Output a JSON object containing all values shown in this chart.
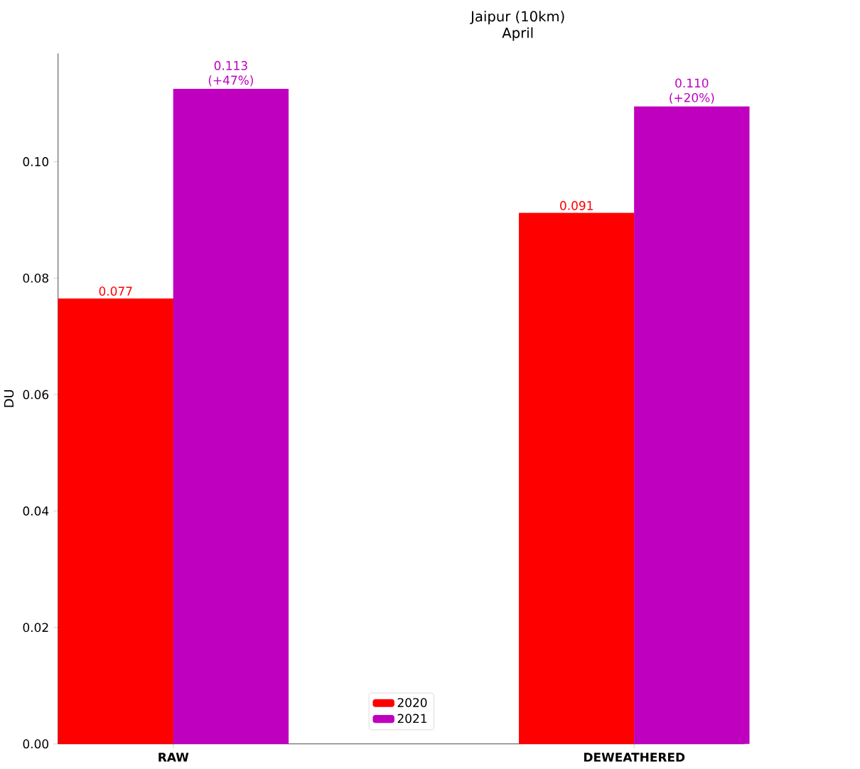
{
  "chart_data": {
    "type": "bar",
    "title": "Jaipur (10km)",
    "subtitle": "April",
    "ylabel": "DU",
    "categories": [
      "RAW",
      "DEWEATHERED"
    ],
    "series": [
      {
        "name": "2020",
        "color": "#ff0000",
        "values": [
          0.0765,
          0.0912
        ],
        "value_labels": [
          "0.077",
          "0.091"
        ]
      },
      {
        "name": "2021",
        "color": "#bf00bf",
        "values": [
          0.1125,
          0.1095
        ],
        "value_labels": [
          "0.113 (+47%)",
          "0.110 (+20%)"
        ]
      }
    ],
    "ylim": [
      0,
      0.1186
    ],
    "yticks": [
      {
        "value": 0,
        "label": "0.00"
      },
      {
        "value": 0.02,
        "label": "0.02"
      },
      {
        "value": 0.04,
        "label": "0.04"
      },
      {
        "value": 0.06,
        "label": "0.06"
      },
      {
        "value": 0.08,
        "label": "0.08"
      },
      {
        "value": 0.1,
        "label": "0.10"
      }
    ],
    "legend": "bottom",
    "grid": false
  }
}
